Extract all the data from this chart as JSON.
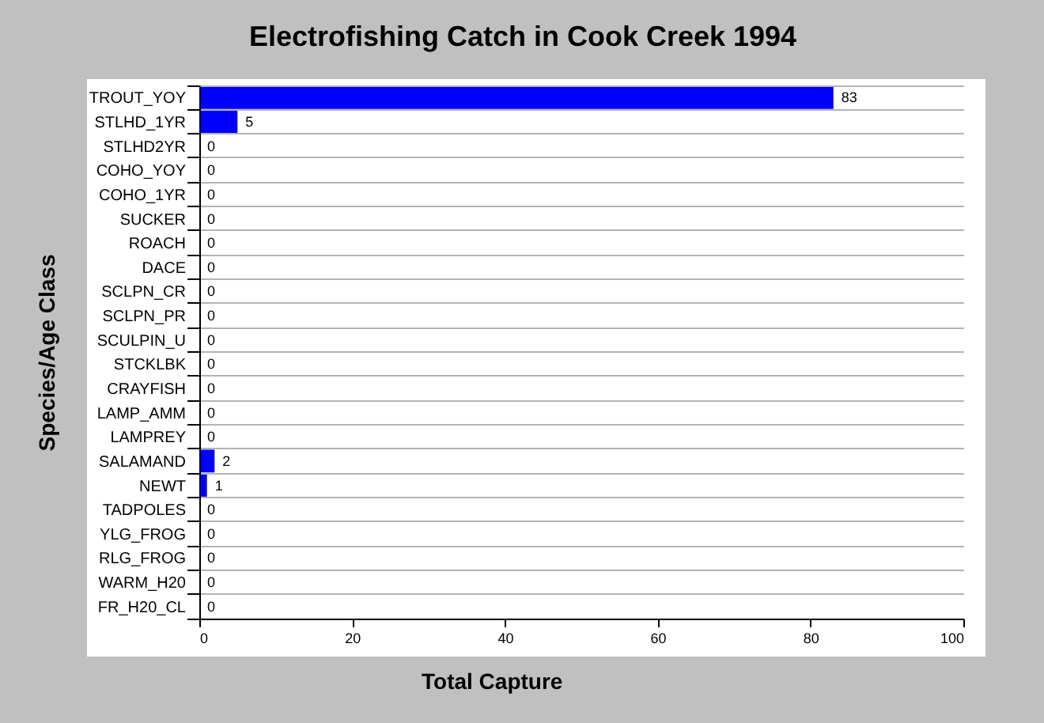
{
  "chart_data": {
    "type": "bar",
    "orientation": "horizontal",
    "title": "Electrofishing Catch in Cook Creek 1994",
    "xlabel": "Total Capture",
    "ylabel": "Species/Age Class",
    "categories": [
      "TROUT_YOY",
      "STLHD_1YR",
      "STLHD2YR",
      "COHO_YOY",
      "COHO_1YR",
      "SUCKER",
      "ROACH",
      "DACE",
      "SCLPN_CR",
      "SCLPN_PR",
      "SCULPIN_U",
      "STCKLBK",
      "CRAYFISH",
      "LAMP_AMM",
      "LAMPREY",
      "SALAMAND",
      "NEWT",
      "TADPOLES",
      "YLG_FROG",
      "RLG_FROG",
      "WARM_H20",
      "FR_H20_CL"
    ],
    "values": [
      83,
      5,
      0,
      0,
      0,
      0,
      0,
      0,
      0,
      0,
      0,
      0,
      0,
      0,
      0,
      2,
      1,
      0,
      0,
      0,
      0,
      0
    ],
    "color": "#0000ff",
    "xlim": [
      0,
      100
    ],
    "xticks": [
      0,
      20,
      40,
      60,
      80,
      100
    ],
    "grid": "y",
    "data_labels": true
  }
}
